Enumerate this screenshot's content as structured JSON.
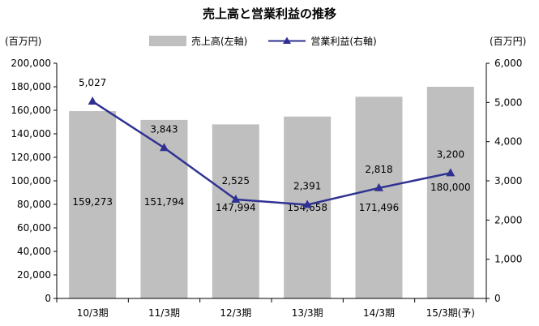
{
  "title": "売上高と営業利益の推移",
  "unit_left": "(百万円)",
  "unit_right": "(百万円)",
  "legend": {
    "bar_label": "売上高(左軸)",
    "line_label": "営業利益(右軸)"
  },
  "colors": {
    "bar": "#bfbfbf",
    "line": "#2e3192",
    "axis": "#000000",
    "text": "#000000"
  },
  "chart_data": {
    "type": "bar",
    "categories": [
      "10/3期",
      "11/3期",
      "12/3期",
      "13/3期",
      "14/3期",
      "15/3期(予)"
    ],
    "series": [
      {
        "name": "売上高(左軸)",
        "type": "bar",
        "axis": "left",
        "values": [
          159273,
          151794,
          147994,
          154658,
          171496,
          180000
        ],
        "labels": [
          "159,273",
          "151,794",
          "147,994",
          "154,658",
          "171,496",
          "180,000"
        ]
      },
      {
        "name": "営業利益(右軸)",
        "type": "line",
        "axis": "right",
        "values": [
          5027,
          3843,
          2525,
          2391,
          2818,
          3200
        ],
        "labels": [
          "5,027",
          "3,843",
          "2,525",
          "2,391",
          "2,818",
          "3,200"
        ]
      }
    ],
    "y_left": {
      "lim": [
        0,
        200000
      ],
      "ticks": [
        "0",
        "20,000",
        "40,000",
        "60,000",
        "80,000",
        "100,000",
        "120,000",
        "140,000",
        "160,000",
        "180,000",
        "200,000"
      ]
    },
    "y_right": {
      "lim": [
        0,
        6000
      ],
      "ticks": [
        "0",
        "1,000",
        "2,000",
        "3,000",
        "4,000",
        "5,000",
        "6,000"
      ]
    },
    "grid": false,
    "legend_position": "top"
  }
}
